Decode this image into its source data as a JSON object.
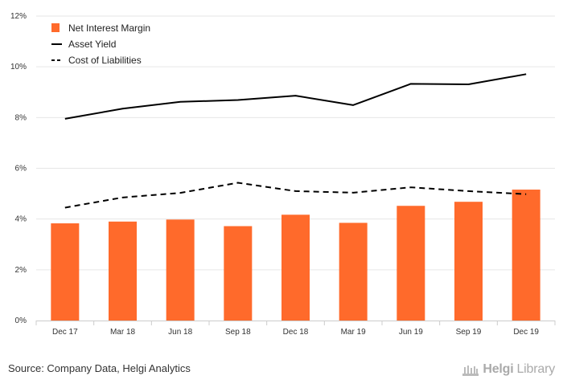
{
  "chart_data": {
    "type": "bar",
    "categories": [
      "Dec 17",
      "Mar 18",
      "Jun 18",
      "Sep 18",
      "Dec 18",
      "Mar 19",
      "Jun 19",
      "Sep 19",
      "Dec 19"
    ],
    "series": [
      {
        "name": "Net Interest Margin",
        "kind": "bar",
        "color": "#ff6a2b",
        "values": [
          3.83,
          3.9,
          3.98,
          3.72,
          4.17,
          3.85,
          4.52,
          4.68,
          5.16
        ]
      },
      {
        "name": "Asset Yield",
        "kind": "line",
        "color": "#000000",
        "dash": "solid",
        "values": [
          7.95,
          8.35,
          8.62,
          8.69,
          8.86,
          8.49,
          9.33,
          9.31,
          9.71
        ]
      },
      {
        "name": "Cost of Liabilities",
        "kind": "line",
        "color": "#000000",
        "dash": "dashed",
        "values": [
          4.45,
          4.85,
          5.03,
          5.43,
          5.1,
          5.04,
          5.25,
          5.1,
          4.98
        ]
      }
    ],
    "ylim": [
      0,
      12
    ],
    "yticks": [
      "0%",
      "2%",
      "4%",
      "6%",
      "8%",
      "10%",
      "12%"
    ],
    "grid": true,
    "legend_position": "top-left"
  },
  "footer": {
    "source": "Source: Company Data, Helgi Analytics",
    "brand_prefix": "Helgi",
    "brand_suffix": "Library"
  }
}
